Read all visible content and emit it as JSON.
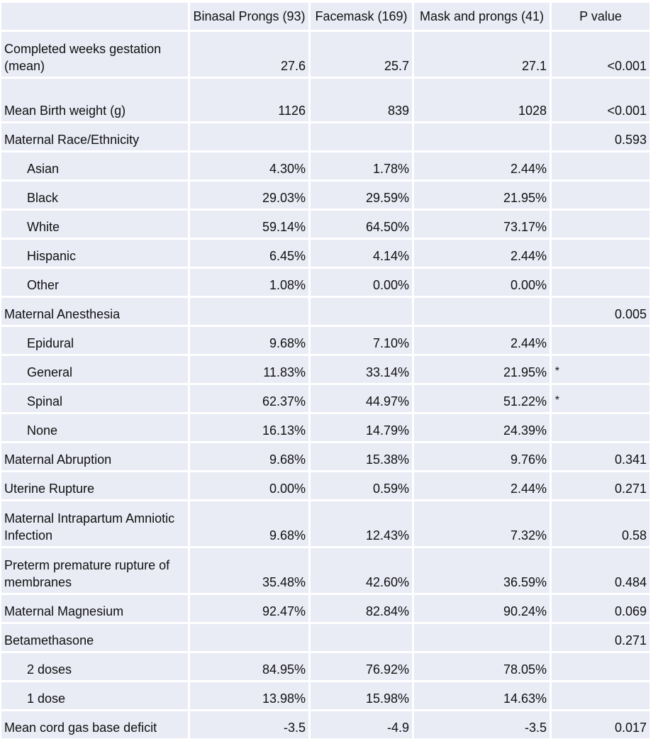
{
  "headers": [
    "",
    "Binasal Prongs (93)",
    "Facemask (169)",
    "Mask and prongs (41)",
    "P value"
  ],
  "rows": [
    {
      "label": "Completed weeks gestation (mean)",
      "vals": [
        "27.6",
        "25.7",
        "27.1",
        "<0.001"
      ],
      "indent": false
    },
    {
      "label": "Mean Birth weight (g)",
      "vals": [
        "1126",
        "839",
        "1028",
        "<0.001"
      ],
      "indent": false
    },
    {
      "label": "Maternal Race/Ethnicity",
      "vals": [
        "",
        "",
        "",
        "0.593"
      ],
      "indent": false
    },
    {
      "label": "Asian",
      "vals": [
        "4.30%",
        "1.78%",
        "2.44%",
        ""
      ],
      "indent": true
    },
    {
      "label": "Black",
      "vals": [
        "29.03%",
        "29.59%",
        "21.95%",
        ""
      ],
      "indent": true
    },
    {
      "label": "White",
      "vals": [
        "59.14%",
        "64.50%",
        "73.17%",
        ""
      ],
      "indent": true
    },
    {
      "label": "Hispanic",
      "vals": [
        "6.45%",
        "4.14%",
        "2.44%",
        ""
      ],
      "indent": true
    },
    {
      "label": "Other",
      "vals": [
        "1.08%",
        "0.00%",
        "0.00%",
        ""
      ],
      "indent": true
    },
    {
      "label": "Maternal Anesthesia",
      "vals": [
        "",
        "",
        "",
        "0.005"
      ],
      "indent": false
    },
    {
      "label": "Epidural",
      "vals": [
        "9.68%",
        "7.10%",
        "2.44%",
        ""
      ],
      "indent": true
    },
    {
      "label": "General",
      "vals": [
        "11.83%",
        "33.14%",
        "21.95%",
        ""
      ],
      "indent": true,
      "mark": "*"
    },
    {
      "label": "Spinal",
      "vals": [
        "62.37%",
        "44.97%",
        "51.22%",
        ""
      ],
      "indent": true,
      "mark": "*"
    },
    {
      "label": "None",
      "vals": [
        "16.13%",
        "14.79%",
        "24.39%",
        ""
      ],
      "indent": true
    },
    {
      "label": "Maternal Abruption",
      "vals": [
        "9.68%",
        "15.38%",
        "9.76%",
        "0.341"
      ],
      "indent": false
    },
    {
      "label": "Uterine Rupture",
      "vals": [
        "0.00%",
        "0.59%",
        "2.44%",
        "0.271"
      ],
      "indent": false
    },
    {
      "label": "Maternal Intrapartum Amniotic Infection",
      "vals": [
        "9.68%",
        "12.43%",
        "7.32%",
        "0.58"
      ],
      "indent": false
    },
    {
      "label": "Preterm premature rupture of membranes",
      "vals": [
        "35.48%",
        "42.60%",
        "36.59%",
        "0.484"
      ],
      "indent": false
    },
    {
      "label": "Maternal Magnesium",
      "vals": [
        "92.47%",
        "82.84%",
        "90.24%",
        "0.069"
      ],
      "indent": false
    },
    {
      "label": "Betamethasone",
      "vals": [
        "",
        "",
        "",
        "0.271"
      ],
      "indent": false
    },
    {
      "label": "2 doses",
      "vals": [
        "84.95%",
        "76.92%",
        "78.05%",
        ""
      ],
      "indent": true
    },
    {
      "label": "1 dose",
      "vals": [
        "13.98%",
        "15.98%",
        "14.63%",
        ""
      ],
      "indent": true
    },
    {
      "label": "Mean cord gas base deficit",
      "vals": [
        "-3.5",
        "-4.9",
        "-3.5",
        "0.017"
      ],
      "indent": false
    }
  ]
}
